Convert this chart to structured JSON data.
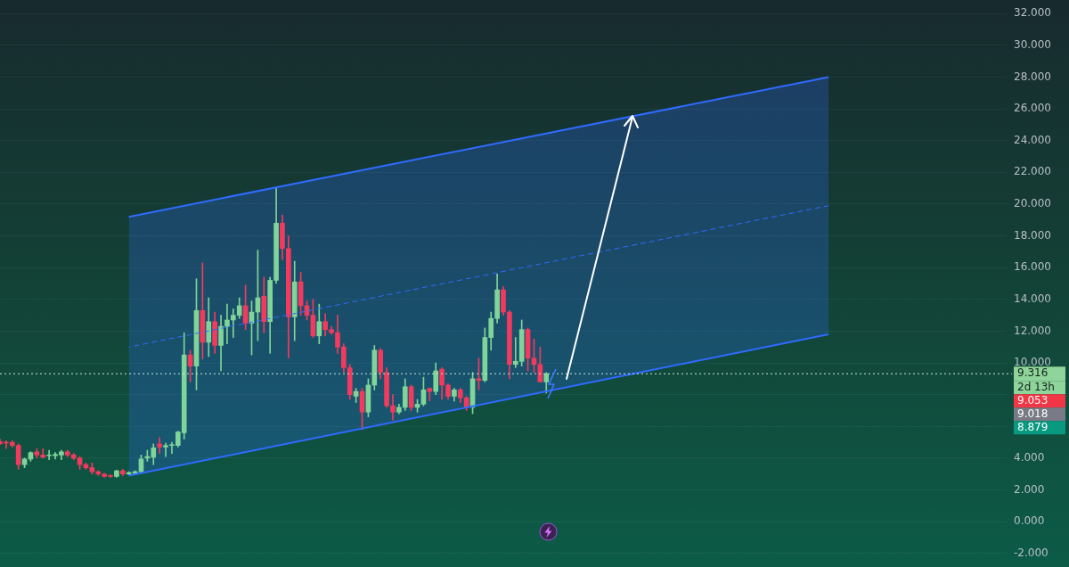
{
  "chart_data": {
    "type": "candlestick",
    "categories": [
      null,
      null,
      null,
      null,
      null,
      null,
      null,
      null,
      null,
      null,
      null,
      null,
      null,
      null,
      null,
      null,
      null,
      null,
      null,
      null,
      null,
      null,
      null,
      null,
      null,
      null,
      null,
      null,
      null,
      null,
      null,
      null,
      null,
      null,
      null,
      null,
      null,
      null,
      null,
      null,
      null,
      null,
      null,
      null,
      null,
      null,
      null,
      null,
      null,
      null,
      null,
      null,
      null,
      null,
      null,
      null,
      null,
      null,
      null,
      null,
      null,
      null,
      null,
      null,
      null,
      null,
      null,
      null,
      null,
      null,
      null,
      null,
      null,
      null,
      null,
      null,
      null,
      null,
      null,
      null,
      null,
      null,
      null,
      null,
      null,
      null,
      null,
      null,
      null,
      null,
      null,
      null,
      null,
      null,
      null,
      null,
      null,
      null,
      null,
      null,
      null,
      null,
      null,
      null,
      null,
      null,
      null,
      null,
      null,
      null,
      null,
      null,
      null,
      null,
      null,
      null,
      null,
      null,
      null,
      null,
      null,
      null,
      null,
      null,
      null,
      null,
      null,
      null,
      null,
      null,
      null,
      null,
      null,
      null,
      null,
      null,
      null,
      null,
      null,
      null,
      null,
      null,
      null,
      null,
      null,
      null,
      null,
      null,
      null,
      null,
      null,
      null,
      null,
      null,
      null,
      null,
      null,
      null,
      null,
      null,
      null,
      null,
      null,
      null,
      null
    ],
    "series": [
      {
        "ohlc": [
          [
            5.05,
            5.2,
            4.85,
            4.9
          ],
          [
            5.0,
            5.1,
            4.6,
            4.95
          ],
          [
            5.0,
            5.1,
            4.7,
            4.8
          ],
          [
            4.8,
            4.9,
            3.3,
            3.6
          ],
          [
            3.6,
            4.0,
            3.4,
            3.95
          ],
          [
            3.95,
            4.4,
            3.8,
            4.35
          ],
          [
            4.4,
            4.6,
            4.0,
            4.2
          ],
          [
            4.2,
            4.6,
            4.0,
            4.05
          ],
          [
            4.15,
            4.5,
            3.9,
            4.2
          ],
          [
            4.15,
            4.35,
            3.95,
            4.25
          ],
          [
            4.2,
            4.5,
            3.9,
            4.4
          ],
          [
            4.4,
            4.5,
            4.1,
            4.2
          ],
          [
            4.2,
            4.3,
            3.9,
            4.0
          ],
          [
            4.0,
            4.1,
            3.3,
            3.6
          ],
          [
            3.6,
            3.7,
            3.3,
            3.4
          ],
          [
            3.4,
            3.7,
            3.0,
            3.15
          ],
          [
            3.15,
            3.2,
            2.9,
            3.0
          ],
          [
            3.0,
            3.05,
            2.8,
            2.85
          ],
          [
            2.9,
            2.95,
            2.8,
            2.85
          ],
          [
            2.85,
            3.25,
            2.8,
            3.2
          ],
          [
            3.2,
            3.3,
            2.9,
            3.0
          ],
          [
            3.0,
            3.15,
            2.95,
            3.1
          ],
          [
            3.05,
            3.2,
            2.95,
            3.15
          ],
          [
            3.15,
            4.2,
            3.1,
            3.95
          ],
          [
            4.0,
            4.5,
            3.8,
            4.1
          ],
          [
            4.05,
            4.9,
            3.6,
            4.65
          ],
          [
            4.9,
            5.3,
            4.3,
            4.7
          ],
          [
            4.7,
            4.95,
            4.1,
            4.8
          ],
          [
            4.8,
            5.0,
            4.3,
            4.85
          ],
          [
            4.8,
            5.7,
            4.7,
            5.65
          ],
          [
            5.6,
            11.9,
            5.2,
            10.5
          ],
          [
            10.5,
            10.8,
            8.8,
            9.8
          ],
          [
            9.8,
            15.3,
            8.3,
            13.3
          ],
          [
            13.3,
            16.3,
            10.25,
            11.3
          ],
          [
            11.3,
            14.1,
            10.4,
            12.6
          ],
          [
            12.6,
            13.2,
            10.6,
            11.1
          ],
          [
            11.1,
            13.0,
            9.5,
            12.3
          ],
          [
            12.3,
            13.7,
            11.2,
            12.7
          ],
          [
            12.7,
            13.4,
            11.6,
            13.0
          ],
          [
            13.0,
            14.1,
            12.8,
            13.6
          ],
          [
            13.6,
            14.9,
            12.1,
            12.5
          ],
          [
            12.5,
            13.9,
            10.5,
            13.2
          ],
          [
            13.2,
            17.1,
            11.4,
            14.1
          ],
          [
            14.2,
            15.4,
            11.9,
            12.6
          ],
          [
            12.6,
            15.4,
            10.6,
            15.2
          ],
          [
            15.2,
            21.0,
            15.0,
            18.8
          ],
          [
            18.8,
            19.3,
            16.5,
            17.2
          ],
          [
            17.2,
            18.0,
            10.3,
            12.9
          ],
          [
            12.9,
            16.4,
            11.4,
            15.1
          ],
          [
            15.1,
            15.7,
            13.0,
            13.6
          ],
          [
            13.6,
            13.9,
            12.7,
            13.0
          ],
          [
            13.0,
            14.0,
            11.6,
            11.7
          ],
          [
            11.7,
            13.7,
            11.2,
            12.6
          ],
          [
            12.6,
            13.1,
            11.7,
            12.1
          ],
          [
            12.1,
            12.3,
            11.8,
            11.9
          ],
          [
            11.9,
            13.0,
            10.6,
            11.0
          ],
          [
            11.0,
            11.2,
            9.4,
            9.7
          ],
          [
            9.7,
            9.9,
            7.7,
            8.0
          ],
          [
            7.9,
            8.4,
            7.5,
            8.2
          ],
          [
            8.2,
            8.4,
            5.8,
            6.9
          ],
          [
            6.9,
            9.0,
            6.6,
            8.6
          ],
          [
            8.6,
            11.1,
            8.3,
            10.8
          ],
          [
            10.8,
            10.9,
            9.0,
            9.4
          ],
          [
            9.4,
            9.7,
            7.2,
            7.3
          ],
          [
            7.3,
            8.0,
            6.4,
            6.9
          ],
          [
            6.9,
            7.4,
            6.8,
            7.2
          ],
          [
            7.2,
            9.0,
            7.0,
            8.5
          ],
          [
            8.5,
            8.6,
            7.0,
            7.2
          ],
          [
            7.2,
            7.7,
            6.9,
            7.4
          ],
          [
            7.4,
            9.1,
            7.3,
            8.3
          ],
          [
            8.4,
            8.4,
            7.6,
            8.2
          ],
          [
            8.2,
            10.0,
            8.0,
            9.5
          ],
          [
            9.6,
            9.7,
            7.7,
            8.6
          ],
          [
            8.6,
            8.7,
            7.7,
            7.9
          ],
          [
            7.9,
            8.4,
            7.6,
            8.3
          ],
          [
            8.3,
            8.4,
            7.5,
            7.8
          ],
          [
            7.8,
            7.9,
            7.0,
            7.2
          ],
          [
            7.2,
            9.4,
            6.8,
            9.0
          ],
          [
            9.0,
            10.3,
            8.3,
            8.9
          ],
          [
            8.9,
            12.2,
            8.8,
            11.6
          ],
          [
            11.6,
            13.2,
            10.8,
            12.8
          ],
          [
            12.8,
            15.6,
            12.5,
            14.6
          ],
          [
            14.6,
            14.8,
            13.0,
            13.2
          ],
          [
            13.2,
            13.3,
            9.0,
            9.9
          ],
          [
            9.9,
            11.6,
            9.7,
            10.1
          ],
          [
            10.1,
            12.7,
            9.8,
            12.1
          ],
          [
            12.1,
            12.2,
            9.5,
            10.3
          ],
          [
            10.3,
            11.5,
            9.4,
            9.9
          ],
          [
            9.9,
            11.0,
            8.8,
            8.8
          ],
          [
            8.8,
            9.4,
            8.1,
            9.316
          ],
          null,
          null,
          null,
          null,
          null,
          null,
          null,
          null,
          null,
          null,
          null,
          null,
          null,
          null,
          null,
          null,
          null,
          null,
          null,
          null,
          null,
          null,
          null,
          null,
          null,
          null,
          null,
          null,
          null,
          null,
          null,
          null,
          null,
          null,
          null,
          null,
          null,
          null,
          null,
          null,
          null,
          null,
          null,
          null,
          null,
          null,
          null,
          null,
          null,
          null,
          null,
          null,
          null,
          null,
          null,
          null,
          null,
          null,
          null,
          null,
          null,
          null,
          null,
          null,
          null,
          null,
          null,
          null,
          null,
          null,
          null,
          null,
          null,
          null,
          null
        ],
        "colors": [
          "#f23a5e",
          "#f23a5e",
          "#f23a5e",
          "#f23a5e",
          "#7fd49a",
          "#7fd49a",
          "#f23a5e",
          "#f23a5e",
          "#7fd49a",
          "#7fd49a",
          "#7fd49a",
          "#f23a5e",
          "#f23a5e",
          "#f23a5e",
          "#f23a5e",
          "#f23a5e",
          "#f23a5e",
          "#f23a5e",
          "#f23a5e",
          "#7fd49a",
          "#f23a5e",
          "#7fd49a",
          "#7fd49a",
          "#7fd49a",
          "#7fd49a",
          "#7fd49a",
          "#f23a5e",
          "#7fd49a",
          "#7fd49a",
          "#7fd49a",
          "#7fd49a",
          "#f23a5e",
          "#7fd49a",
          "#f23a5e",
          "#7fd49a",
          "#f23a5e",
          "#7fd49a",
          "#7fd49a",
          "#7fd49a",
          "#7fd49a",
          "#f23a5e",
          "#7fd49a",
          "#7fd49a",
          "#f23a5e",
          "#7fd49a",
          "#7fd49a",
          "#f23a5e",
          "#f23a5e",
          "#7fd49a",
          "#f23a5e",
          "#f23a5e",
          "#f23a5e",
          "#7fd49a",
          "#f23a5e",
          "#f23a5e",
          "#f23a5e",
          "#f23a5e",
          "#f23a5e",
          "#7fd49a",
          "#f23a5e",
          "#7fd49a",
          "#7fd49a",
          "#f23a5e",
          "#f23a5e",
          "#f23a5e",
          "#7fd49a",
          "#7fd49a",
          "#f23a5e",
          "#7fd49a",
          "#7fd49a",
          "#f23a5e",
          "#7fd49a",
          "#f23a5e",
          "#f23a5e",
          "#7fd49a",
          "#f23a5e",
          "#f23a5e",
          "#7fd49a",
          "#f23a5e",
          "#7fd49a",
          "#7fd49a",
          "#7fd49a",
          "#f23a5e",
          "#f23a5e",
          "#7fd49a",
          "#7fd49a",
          "#f23a5e",
          "#f23a5e",
          "#f23a5e",
          "#7fd49a",
          null,
          null,
          null,
          null,
          null,
          null,
          null,
          null,
          null,
          null,
          null,
          null,
          null,
          null,
          null,
          null,
          null,
          null,
          null,
          null,
          null,
          null,
          null,
          null,
          null,
          null,
          null,
          null,
          null,
          null,
          null,
          null,
          null,
          null,
          null,
          null,
          null,
          null,
          null,
          null,
          null,
          null,
          null,
          null,
          null,
          null,
          null,
          null,
          null,
          null,
          null,
          null,
          null,
          null,
          null,
          null,
          null,
          null,
          null,
          null,
          null,
          null,
          null,
          null,
          null,
          null,
          null,
          null,
          null,
          null,
          null,
          null,
          null,
          null,
          null
        ]
      },
      {
        "type": "line",
        "color": "#2f6bff",
        "line_style": "solid",
        "values": [
          null,
          null,
          null,
          null,
          null,
          null,
          null,
          null,
          null,
          null,
          null,
          null,
          null,
          null,
          null,
          null,
          null,
          null,
          null,
          null,
          null,
          19.2,
          null,
          null,
          null,
          null,
          null,
          null,
          null,
          null,
          null,
          null,
          null,
          null,
          null,
          null,
          null,
          null,
          null,
          null,
          null,
          null,
          null,
          null,
          null,
          null,
          null,
          null,
          null,
          null,
          null,
          null,
          null,
          null,
          null,
          null,
          null,
          null,
          null,
          null,
          null,
          null,
          null,
          null,
          null,
          null,
          null,
          null,
          null,
          null,
          null,
          null,
          null,
          null,
          null,
          null,
          null,
          null,
          null,
          null,
          null,
          null,
          null,
          null,
          null,
          null,
          null,
          null,
          null,
          null,
          null,
          null,
          null,
          null,
          null,
          null,
          null,
          null,
          null,
          null,
          null,
          null,
          null,
          null,
          null,
          null,
          null,
          null,
          null,
          null,
          null,
          null,
          null,
          null,
          null,
          null,
          null,
          null,
          null,
          null,
          null,
          null,
          null,
          null,
          null,
          null,
          null,
          null,
          null,
          null,
          null,
          null,
          null,
          null,
          null,
          28.0,
          null,
          null,
          null,
          null,
          null,
          null,
          null,
          null,
          null,
          null,
          null,
          null,
          null,
          null,
          null,
          null,
          null,
          null,
          null,
          null,
          null,
          null,
          null,
          null,
          null,
          null,
          null,
          null,
          null
        ]
      },
      {
        "type": "line",
        "color": "#2f6bff",
        "line_style": "solid",
        "values": [
          null,
          null,
          null,
          null,
          null,
          null,
          null,
          null,
          null,
          null,
          null,
          null,
          null,
          null,
          null,
          null,
          null,
          null,
          null,
          null,
          null,
          2.9,
          null,
          null,
          null,
          null,
          null,
          null,
          null,
          null,
          null,
          null,
          null,
          null,
          null,
          null,
          null,
          null,
          null,
          null,
          null,
          null,
          null,
          null,
          null,
          null,
          null,
          null,
          null,
          null,
          null,
          null,
          null,
          null,
          null,
          null,
          null,
          null,
          null,
          null,
          null,
          null,
          null,
          null,
          null,
          null,
          null,
          null,
          null,
          null,
          null,
          null,
          null,
          null,
          null,
          null,
          null,
          null,
          null,
          null,
          null,
          null,
          null,
          null,
          null,
          null,
          null,
          null,
          null,
          null,
          null,
          null,
          null,
          null,
          null,
          null,
          null,
          null,
          null,
          null,
          null,
          null,
          null,
          null,
          null,
          null,
          null,
          null,
          null,
          null,
          null,
          null,
          null,
          null,
          null,
          null,
          null,
          null,
          null,
          null,
          null,
          null,
          null,
          null,
          null,
          null,
          null,
          null,
          null,
          null,
          null,
          null,
          null,
          null,
          null,
          11.8,
          null,
          null,
          null,
          null,
          null,
          null,
          null,
          null,
          null,
          null,
          null,
          null,
          null,
          null,
          null,
          null,
          null,
          null,
          null,
          null,
          null,
          null,
          null,
          null,
          null,
          null,
          null,
          null,
          null
        ]
      },
      {
        "type": "line",
        "color": "#2f6bff",
        "line_style": "dashed",
        "values": [
          null,
          null,
          null,
          null,
          null,
          null,
          null,
          null,
          null,
          null,
          null,
          null,
          null,
          null,
          null,
          null,
          null,
          null,
          null,
          null,
          null,
          11.0,
          null,
          null,
          null,
          null,
          null,
          null,
          null,
          null,
          null,
          null,
          null,
          null,
          null,
          null,
          null,
          null,
          null,
          null,
          null,
          null,
          null,
          null,
          null,
          null,
          null,
          null,
          null,
          null,
          null,
          null,
          null,
          null,
          null,
          null,
          null,
          null,
          null,
          null,
          null,
          null,
          null,
          null,
          null,
          null,
          null,
          null,
          null,
          null,
          null,
          null,
          null,
          null,
          null,
          null,
          null,
          null,
          null,
          null,
          null,
          null,
          null,
          null,
          null,
          null,
          null,
          null,
          null,
          null,
          null,
          null,
          null,
          null,
          null,
          null,
          null,
          null,
          null,
          null,
          null,
          null,
          null,
          null,
          null,
          null,
          null,
          null,
          null,
          null,
          null,
          null,
          null,
          null,
          null,
          null,
          null,
          null,
          null,
          null,
          null,
          null,
          null,
          null,
          null,
          null,
          null,
          null,
          null,
          null,
          null,
          null,
          null,
          null,
          null,
          19.9,
          null,
          null,
          null,
          null,
          null,
          null,
          null,
          null,
          null,
          null,
          null,
          null,
          null,
          null,
          null,
          null,
          null,
          null,
          null,
          null,
          null,
          null,
          null,
          null,
          null,
          null,
          null,
          null,
          null
        ],
        "lower": [
          null,
          null,
          null,
          null,
          null,
          null,
          null,
          null,
          null,
          null,
          null,
          null,
          null,
          null,
          null,
          null,
          null,
          null,
          null,
          null,
          null,
          2.9,
          null,
          null,
          null,
          null,
          null,
          null,
          null,
          null,
          null,
          null,
          null,
          null,
          null,
          null,
          null,
          null,
          null,
          null,
          null,
          null,
          null,
          null,
          null,
          null,
          null,
          null,
          null,
          null,
          null,
          null,
          null,
          null,
          null,
          null,
          null,
          null,
          null,
          null,
          null,
          null,
          null,
          null,
          null,
          null,
          null,
          null,
          null,
          null,
          null,
          null,
          null,
          null,
          null,
          null,
          null,
          null,
          null,
          null,
          null,
          null,
          null,
          null,
          null,
          null,
          null,
          null,
          null,
          null,
          null,
          null,
          null,
          null,
          null,
          null,
          null,
          null,
          null,
          null,
          null,
          null,
          null,
          null,
          null,
          null,
          null,
          null,
          null,
          null,
          null,
          null,
          null,
          null,
          null,
          null,
          null,
          null,
          null,
          null,
          null,
          null,
          null,
          null,
          null,
          null,
          null,
          null,
          null,
          null,
          null,
          null,
          null,
          null,
          null,
          11.8,
          null,
          null,
          null,
          null,
          null,
          null,
          null,
          null,
          null,
          null,
          null,
          null,
          null,
          null,
          null,
          null,
          null,
          null,
          null,
          null,
          null,
          null,
          null,
          null,
          null,
          null,
          null,
          null,
          null
        ],
        "upper": [
          null,
          null,
          null,
          null,
          null,
          null,
          null,
          null,
          null,
          null,
          null,
          null,
          null,
          null,
          null,
          null,
          null,
          null,
          null,
          null,
          null,
          19.2,
          null,
          null,
          null,
          null,
          null,
          null,
          null,
          null,
          null,
          null,
          null,
          null,
          null,
          null,
          null,
          null,
          null,
          null,
          null,
          null,
          null,
          null,
          null,
          null,
          null,
          null,
          null,
          null,
          null,
          null,
          null,
          null,
          null,
          null,
          null,
          null,
          null,
          null,
          null,
          null,
          null,
          null,
          null,
          null,
          null,
          null,
          null,
          null,
          null,
          null,
          null,
          null,
          null,
          null,
          null,
          null,
          null,
          null,
          null,
          null,
          null,
          null,
          null,
          null,
          null,
          null,
          null,
          null,
          null,
          null,
          null,
          null,
          null,
          null,
          null,
          null,
          null,
          null,
          null,
          null,
          null,
          null,
          null,
          null,
          null,
          null,
          null,
          null,
          null,
          null,
          null,
          null,
          null,
          null,
          null,
          null,
          null,
          null,
          null,
          null,
          null,
          null,
          null,
          null,
          null,
          null,
          null,
          null,
          null,
          null,
          null,
          null,
          null,
          28.0,
          null,
          null,
          null,
          null,
          null,
          null,
          null,
          null,
          null,
          null,
          null,
          null,
          null,
          null,
          null,
          null,
          null,
          null,
          null,
          null,
          null,
          null,
          null,
          null,
          null,
          null,
          null,
          null,
          null
        ]
      }
    ],
    "ylim": [
      -2,
      32
    ],
    "yticks": [
      {
        "value": -2,
        "label": "-2.000"
      },
      {
        "value": 0,
        "label": "0.000"
      },
      {
        "value": 2,
        "label": "2.000"
      },
      {
        "value": 4,
        "label": "4.000"
      },
      {
        "value": 6,
        "label": null
      },
      {
        "value": 8,
        "label": null
      },
      {
        "value": 10,
        "label": "10.000"
      },
      {
        "value": 12,
        "label": "12.000"
      },
      {
        "value": 14,
        "label": "14.000"
      },
      {
        "value": 16,
        "label": "16.000"
      },
      {
        "value": 18,
        "label": "18.000"
      },
      {
        "value": 20,
        "label": "20.000"
      },
      {
        "value": 22,
        "label": "22.000"
      },
      {
        "value": 24,
        "label": "24.000"
      },
      {
        "value": 26,
        "label": "26.000"
      },
      {
        "value": 28,
        "label": "28.000"
      },
      {
        "value": 30,
        "label": "30.000"
      },
      {
        "value": 32,
        "label": "32.000"
      }
    ],
    "ref_lines": [
      {
        "axis": "y",
        "value": 9.316,
        "label": "9.316",
        "color": "#cfe8d8",
        "line_style": "dotted"
      }
    ],
    "annotations": [
      "2d 13h",
      "9.053",
      "9.018",
      "8.879"
    ],
    "grid": "y",
    "marker": "none",
    "tick_labels": "y",
    "legend": false
  }
}
